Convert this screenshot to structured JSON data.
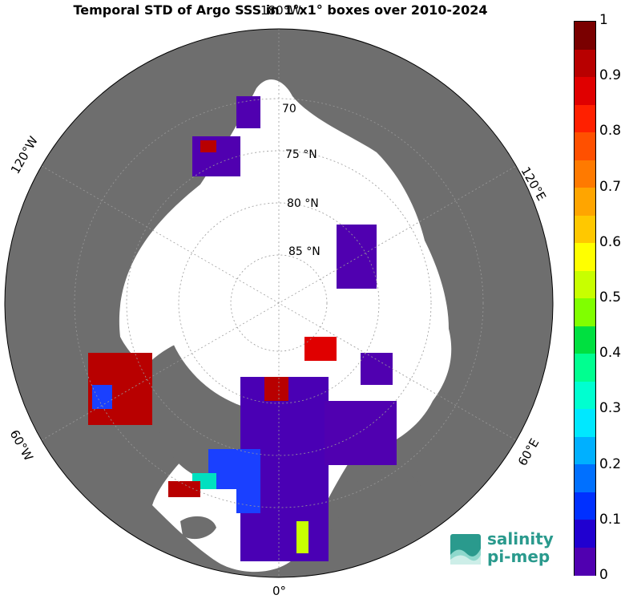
{
  "title": "Temporal STD of Argo SSS in 1°x1° boxes over 2010-2024",
  "lon_labels": {
    "top": "180°W",
    "left_upper": "120°W",
    "right_upper": "120°E",
    "left_lower": "60°W",
    "right_lower": "60°E",
    "bottom": "0°"
  },
  "lat_labels": [
    "70",
    "75 °N",
    "80 °N",
    "85 °N"
  ],
  "colorbar": {
    "min": 0,
    "max": 1,
    "step": 0.05,
    "ticks": [
      "1",
      "0.9",
      "0.8",
      "0.7",
      "0.6",
      "0.5",
      "0.4",
      "0.3",
      "0.2",
      "0.1",
      "0"
    ],
    "colors": [
      "#7a0000",
      "#b80000",
      "#e00000",
      "#ff2000",
      "#ff5000",
      "#ff7a00",
      "#ffa500",
      "#ffc800",
      "#ffff00",
      "#c8ff00",
      "#80ff00",
      "#00e040",
      "#00ff90",
      "#00ffd0",
      "#00e8ff",
      "#00b0ff",
      "#0070ff",
      "#0030ff",
      "#2000d0",
      "#5000b0"
    ]
  },
  "logo": {
    "line1": "salinity",
    "line2": "pi-mep"
  },
  "colors": {
    "land": "#6e6e6e",
    "ocean": "#ffffff",
    "ice_land": "#ffffff"
  }
}
